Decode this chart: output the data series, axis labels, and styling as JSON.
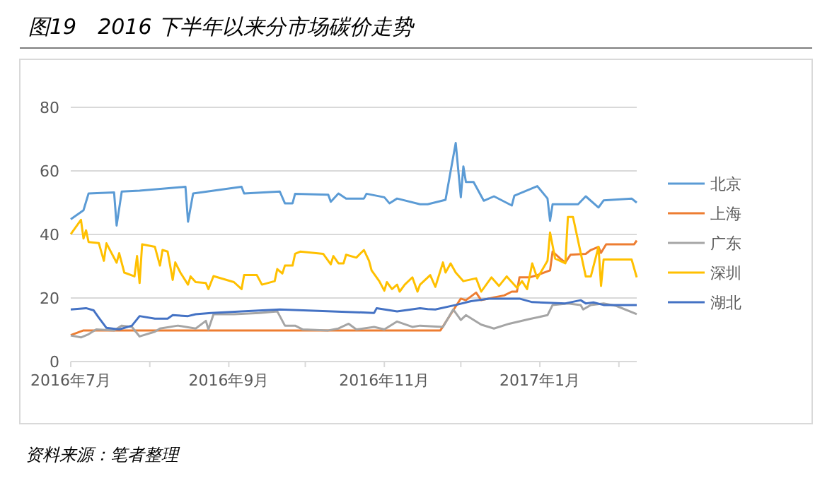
{
  "chart_data": {
    "type": "line",
    "title": "图19　2016 下半年以来分市场碳价走势",
    "annotations": [
      "资料来源：笔者整理"
    ],
    "xlim": [
      "2016-07-01",
      "2017-02-08"
    ],
    "xticks": [
      {
        "value": "2016-07-01",
        "label": "2016年7月"
      },
      {
        "value": "2016-08-01",
        "label": null
      },
      {
        "value": "2016-09-01",
        "label": "2016年9月"
      },
      {
        "value": "2016-10-01",
        "label": null
      },
      {
        "value": "2016-11-01",
        "label": "2016年11月"
      },
      {
        "value": "2016-12-01",
        "label": null
      },
      {
        "value": "2017-01-01",
        "label": "2017年1月"
      },
      {
        "value": "2017-02-01",
        "label": null
      }
    ],
    "ylim": [
      0,
      80
    ],
    "yticks": [
      0,
      20,
      40,
      60,
      80
    ],
    "grid": "y",
    "legend": "right",
    "series": [
      {
        "name": "北京",
        "color": "#5b9bd5",
        "x": [
          "2016-07-01",
          "2016-07-06",
          "2016-07-08",
          "2016-07-18",
          "2016-07-19",
          "2016-07-21",
          "2016-07-28",
          "2016-08-15",
          "2016-08-16",
          "2016-08-18",
          "2016-09-06",
          "2016-09-07",
          "2016-09-21",
          "2016-09-23",
          "2016-09-26",
          "2016-09-27",
          "2016-10-10",
          "2016-10-11",
          "2016-10-14",
          "2016-10-17",
          "2016-10-24",
          "2016-10-25",
          "2016-11-01",
          "2016-11-03",
          "2016-11-06",
          "2016-11-15",
          "2016-11-18",
          "2016-11-25",
          "2016-11-27",
          "2016-11-29",
          "2016-12-01",
          "2016-12-02",
          "2016-12-03",
          "2016-12-06",
          "2016-12-10",
          "2016-12-14",
          "2016-12-21",
          "2016-12-22",
          "2016-12-31",
          "2017-01-04",
          "2017-01-05",
          "2017-01-06",
          "2017-01-16",
          "2017-01-19",
          "2017-01-24",
          "2017-01-26",
          "2017-02-06",
          "2017-02-08"
        ],
        "values": [
          44.8,
          47.6,
          52.9,
          53.2,
          42.8,
          53.5,
          53.8,
          55.0,
          44.0,
          52.9,
          55.0,
          52.9,
          53.5,
          49.8,
          49.8,
          52.8,
          52.5,
          50.3,
          52.9,
          51.3,
          51.3,
          52.8,
          51.7,
          49.8,
          51.3,
          49.5,
          49.5,
          50.9,
          59.9,
          68.8,
          51.7,
          61.4,
          56.5,
          56.5,
          50.6,
          52.0,
          49.1,
          52.2,
          55.2,
          51.3,
          44.3,
          49.5,
          49.5,
          52.0,
          48.5,
          50.7,
          51.3,
          50.0
        ]
      },
      {
        "name": "上海",
        "color": "#ed7d31",
        "x": [
          "2016-07-01",
          "2016-07-06",
          "2016-11-23",
          "2016-11-28",
          "2016-12-01",
          "2016-12-03",
          "2016-12-07",
          "2016-12-09",
          "2016-12-14",
          "2016-12-18",
          "2016-12-21",
          "2016-12-23",
          "2016-12-24",
          "2016-12-28",
          "2016-12-31",
          "2017-01-05",
          "2017-01-06",
          "2017-01-09",
          "2017-01-11",
          "2017-01-13",
          "2017-01-19",
          "2017-01-21",
          "2017-01-24",
          "2017-01-25",
          "2017-01-27",
          "2017-02-07",
          "2017-02-08"
        ],
        "values": [
          8.3,
          9.8,
          9.8,
          16.1,
          19.8,
          19.3,
          21.7,
          19.3,
          20.2,
          20.8,
          22.0,
          22.0,
          26.5,
          26.5,
          27.2,
          28.7,
          34.6,
          32.4,
          31.2,
          33.6,
          33.9,
          35.1,
          36.1,
          34.2,
          36.9,
          36.9,
          38.1
        ]
      },
      {
        "name": "广东",
        "color": "#a5a5a5",
        "x": [
          "2016-07-01",
          "2016-07-05",
          "2016-07-08",
          "2016-07-11",
          "2016-07-18",
          "2016-07-21",
          "2016-07-25",
          "2016-07-28",
          "2016-08-03",
          "2016-08-05",
          "2016-08-12",
          "2016-08-19",
          "2016-08-23",
          "2016-08-24",
          "2016-08-26",
          "2016-09-03",
          "2016-09-13",
          "2016-09-20",
          "2016-09-23",
          "2016-09-27",
          "2016-09-30",
          "2016-10-10",
          "2016-10-14",
          "2016-10-18",
          "2016-10-21",
          "2016-10-28",
          "2016-11-01",
          "2016-11-06",
          "2016-11-12",
          "2016-11-15",
          "2016-11-24",
          "2016-11-28",
          "2016-12-01",
          "2016-12-03",
          "2016-12-09",
          "2016-12-14",
          "2016-12-20",
          "2016-12-28",
          "2017-01-04",
          "2017-01-06",
          "2017-01-12",
          "2017-01-17",
          "2017-01-18",
          "2017-01-21",
          "2017-01-26",
          "2017-01-31",
          "2017-02-08"
        ],
        "values": [
          8.2,
          7.6,
          8.6,
          10.1,
          9.8,
          11.3,
          10.9,
          7.9,
          9.4,
          10.4,
          11.3,
          10.4,
          12.8,
          10.1,
          14.9,
          14.9,
          15.3,
          15.8,
          11.3,
          11.3,
          10.1,
          9.8,
          10.4,
          11.9,
          10.1,
          10.9,
          10.1,
          12.6,
          10.9,
          11.3,
          10.9,
          16.4,
          13.1,
          14.6,
          11.6,
          10.4,
          11.9,
          13.4,
          14.6,
          17.8,
          18.3,
          17.8,
          16.4,
          17.8,
          18.3,
          17.5,
          14.9
        ]
      },
      {
        "name": "深圳",
        "color": "#ffc000",
        "x": [
          "2016-07-01",
          "2016-07-05",
          "2016-07-06",
          "2016-07-07",
          "2016-07-08",
          "2016-07-12",
          "2016-07-14",
          "2016-07-15",
          "2016-07-19",
          "2016-07-20",
          "2016-07-22",
          "2016-07-26",
          "2016-07-27",
          "2016-07-28",
          "2016-07-29",
          "2016-08-03",
          "2016-08-05",
          "2016-08-06",
          "2016-08-08",
          "2016-08-10",
          "2016-08-11",
          "2016-08-13",
          "2016-08-16",
          "2016-08-17",
          "2016-08-19",
          "2016-08-23",
          "2016-08-24",
          "2016-08-26",
          "2016-09-03",
          "2016-09-06",
          "2016-09-07",
          "2016-09-12",
          "2016-09-14",
          "2016-09-19",
          "2016-09-20",
          "2016-09-22",
          "2016-09-23",
          "2016-09-26",
          "2016-09-27",
          "2016-09-29",
          "2016-10-08",
          "2016-10-11",
          "2016-10-12",
          "2016-10-14",
          "2016-10-16",
          "2016-10-17",
          "2016-10-21",
          "2016-10-24",
          "2016-10-26",
          "2016-10-27",
          "2016-10-30",
          "2016-11-01",
          "2016-11-02",
          "2016-11-04",
          "2016-11-06",
          "2016-11-07",
          "2016-11-09",
          "2016-11-12",
          "2016-11-14",
          "2016-11-15",
          "2016-11-19",
          "2016-11-21",
          "2016-11-24",
          "2016-11-25",
          "2016-11-27",
          "2016-11-29",
          "2016-12-02",
          "2016-12-07",
          "2016-12-09",
          "2016-12-13",
          "2016-12-16",
          "2016-12-19",
          "2016-12-23",
          "2016-12-25",
          "2016-12-27",
          "2016-12-29",
          "2016-12-31",
          "2017-01-04",
          "2017-01-05",
          "2017-01-07",
          "2017-01-11",
          "2017-01-12",
          "2017-01-14",
          "2017-01-19",
          "2017-01-21",
          "2017-01-24",
          "2017-01-25",
          "2017-01-26",
          "2017-02-06",
          "2017-02-08"
        ],
        "values": [
          40.1,
          44.6,
          38.7,
          41.3,
          37.6,
          37.3,
          31.7,
          37.2,
          31.1,
          34.1,
          28.0,
          26.8,
          33.2,
          24.7,
          36.9,
          36.1,
          30.2,
          35.1,
          34.6,
          25.7,
          31.2,
          28.0,
          24.2,
          26.8,
          25.0,
          24.7,
          22.8,
          26.9,
          25.0,
          22.8,
          27.2,
          27.2,
          24.2,
          25.3,
          29.1,
          27.7,
          30.2,
          30.2,
          33.9,
          34.6,
          33.9,
          30.6,
          33.2,
          30.9,
          30.9,
          33.6,
          32.7,
          35.1,
          31.7,
          28.7,
          25.3,
          22.3,
          25.0,
          22.8,
          24.2,
          22.0,
          24.2,
          26.5,
          22.0,
          24.2,
          27.2,
          23.5,
          31.2,
          28.0,
          30.9,
          28.0,
          25.3,
          26.2,
          22.0,
          26.5,
          23.8,
          26.8,
          23.2,
          25.3,
          22.8,
          30.9,
          26.2,
          31.7,
          40.6,
          32.4,
          30.9,
          45.5,
          45.5,
          26.8,
          26.8,
          36.1,
          23.8,
          32.1,
          32.1,
          26.5
        ]
      },
      {
        "name": "湖北",
        "color": "#4472c4",
        "x": [
          "2016-07-01",
          "2016-07-07",
          "2016-07-10",
          "2016-07-12",
          "2016-07-15",
          "2016-07-20",
          "2016-07-25",
          "2016-07-28",
          "2016-08-03",
          "2016-08-08",
          "2016-08-10",
          "2016-08-16",
          "2016-08-19",
          "2016-08-25",
          "2016-09-06",
          "2016-09-21",
          "2016-10-28",
          "2016-10-29",
          "2016-11-06",
          "2016-11-15",
          "2016-11-18",
          "2016-11-21",
          "2016-11-29",
          "2016-12-05",
          "2016-12-12",
          "2016-12-24",
          "2016-12-29",
          "2017-01-11",
          "2017-01-17",
          "2017-01-19",
          "2017-01-22",
          "2017-01-26",
          "2017-02-08"
        ],
        "values": [
          16.4,
          16.8,
          16.1,
          13.8,
          10.6,
          10.1,
          11.3,
          14.3,
          13.5,
          13.5,
          14.6,
          14.3,
          14.9,
          15.3,
          15.8,
          16.4,
          15.3,
          16.8,
          15.8,
          16.8,
          16.5,
          16.4,
          17.8,
          19.0,
          19.8,
          19.8,
          18.7,
          18.3,
          19.3,
          18.3,
          18.6,
          17.8,
          17.8
        ]
      }
    ]
  }
}
